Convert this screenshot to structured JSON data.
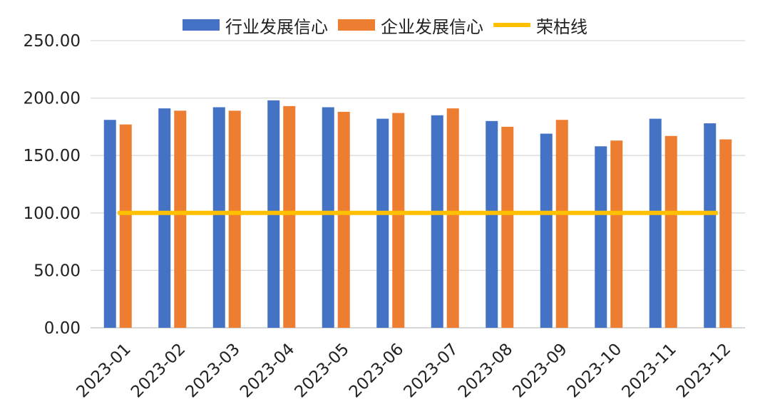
{
  "colors": {
    "industry": "#4472C4",
    "enterprise": "#ED7D31",
    "line": "#FFC000",
    "grid": "#D9D9D9"
  },
  "legend": {
    "industry": "行业发展信心",
    "enterprise": "企业发展信心",
    "line": "荣枯线"
  },
  "chart_data": {
    "type": "bar",
    "categories": [
      "2023-01",
      "2023-02",
      "2023-03",
      "2023-04",
      "2023-05",
      "2023-06",
      "2023-07",
      "2023-08",
      "2023-09",
      "2023-10",
      "2023-11",
      "2023-12"
    ],
    "series": [
      {
        "name": "行业发展信心",
        "type": "bar",
        "values": [
          181,
          191,
          192,
          198,
          192,
          182,
          185,
          180,
          169,
          158,
          182,
          178
        ]
      },
      {
        "name": "企业发展信心",
        "type": "bar",
        "values": [
          177,
          189,
          189,
          193,
          188,
          187,
          191,
          175,
          181,
          163,
          167,
          164
        ]
      },
      {
        "name": "荣枯线",
        "type": "line",
        "values": [
          100,
          100,
          100,
          100,
          100,
          100,
          100,
          100,
          100,
          100,
          100,
          100
        ]
      }
    ],
    "yticks": [
      "0.00",
      "50.00",
      "100.00",
      "150.00",
      "200.00",
      "250.00"
    ],
    "ylim": [
      0,
      250
    ],
    "grid": true,
    "legend_position": "top-center"
  }
}
